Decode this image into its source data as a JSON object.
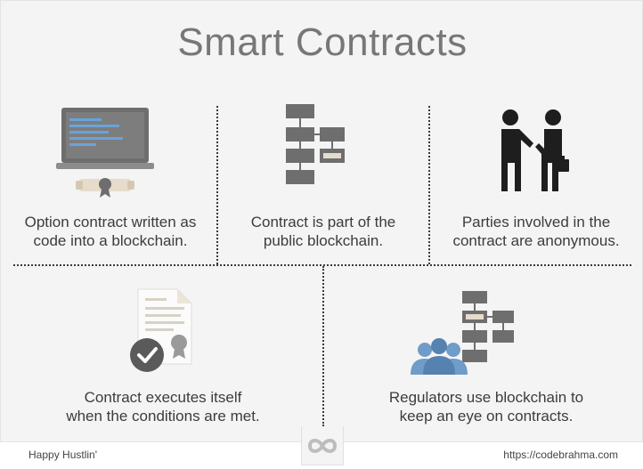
{
  "title": "Smart Contracts",
  "steps": [
    {
      "caption_line1": "Option contract written as",
      "caption_line2": "code into a blockchain.",
      "icon": "laptop-contract-icon"
    },
    {
      "caption_line1": "Contract is part of the",
      "caption_line2": "public blockchain.",
      "icon": "blockchain-flow-icon"
    },
    {
      "caption_line1": "Parties involved in the",
      "caption_line2": "contract are anonymous.",
      "icon": "handshake-icon"
    },
    {
      "caption_line1": "Contract executes itself",
      "caption_line2": "when the conditions are met.",
      "icon": "certificate-check-icon"
    },
    {
      "caption_line1": "Regulators use blockchain to",
      "caption_line2": "keep an eye on contracts.",
      "icon": "regulators-blockchain-icon"
    }
  ],
  "footer": {
    "left": "Happy Hustlin'",
    "right": "https://codebrahma.com",
    "logo_icon": "infinity-logo-icon"
  },
  "colors": {
    "background": "#f4f4f4",
    "text": "#3c3c3c",
    "title": "#777777",
    "icon_gray": "#6e6e6e",
    "screen_blue": "#6aa3d8",
    "check_circle": "#5a5a5a",
    "people_blue": "#6f9cc9"
  }
}
